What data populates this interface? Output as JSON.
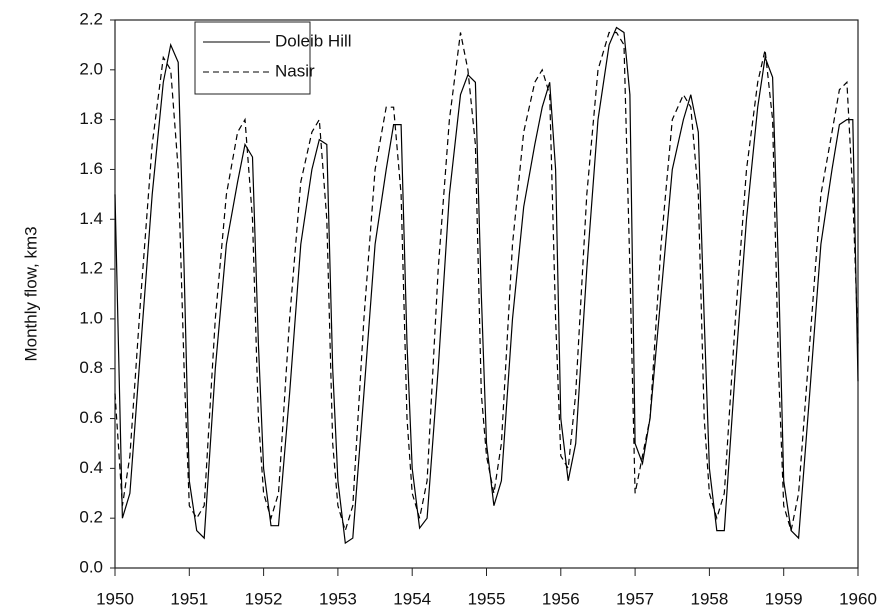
{
  "chart_data": {
    "type": "line",
    "y_label": "Monthly flow, km3",
    "x": [
      1950,
      1950.1,
      1950.2,
      1950.35,
      1950.5,
      1950.65,
      1950.75,
      1950.85,
      1950.93,
      1951,
      1951.1,
      1951.2,
      1951.35,
      1951.5,
      1951.65,
      1951.75,
      1951.85,
      1951.93,
      1952,
      1952.1,
      1952.2,
      1952.35,
      1952.5,
      1952.65,
      1952.75,
      1952.85,
      1952.93,
      1953,
      1953.1,
      1953.2,
      1953.35,
      1953.5,
      1953.65,
      1953.75,
      1953.85,
      1953.93,
      1954,
      1954.1,
      1954.2,
      1954.35,
      1954.5,
      1954.65,
      1954.75,
      1954.85,
      1954.93,
      1955,
      1955.1,
      1955.2,
      1955.35,
      1955.5,
      1955.65,
      1955.75,
      1955.85,
      1955.93,
      1956,
      1956.1,
      1956.2,
      1956.35,
      1956.5,
      1956.65,
      1956.75,
      1956.85,
      1956.93,
      1957,
      1957.1,
      1957.2,
      1957.35,
      1957.5,
      1957.65,
      1957.75,
      1957.85,
      1957.93,
      1958,
      1958.1,
      1958.2,
      1958.35,
      1958.5,
      1958.65,
      1958.75,
      1958.85,
      1958.93,
      1959,
      1959.1,
      1959.2,
      1959.35,
      1959.5,
      1959.65,
      1959.75,
      1959.85,
      1959.93,
      1960
    ],
    "series": [
      {
        "name": "Doleib Hill",
        "color": "#000000",
        "dash": false,
        "values": [
          1.5,
          0.2,
          0.3,
          0.9,
          1.5,
          1.95,
          2.1,
          2.03,
          1.2,
          0.35,
          0.15,
          0.12,
          0.8,
          1.3,
          1.55,
          1.7,
          1.65,
          0.9,
          0.4,
          0.17,
          0.17,
          0.7,
          1.3,
          1.6,
          1.72,
          1.7,
          0.8,
          0.35,
          0.1,
          0.12,
          0.7,
          1.3,
          1.6,
          1.78,
          1.78,
          0.9,
          0.4,
          0.16,
          0.2,
          0.8,
          1.5,
          1.9,
          1.98,
          1.95,
          1.1,
          0.5,
          0.25,
          0.35,
          1.0,
          1.45,
          1.7,
          1.85,
          1.95,
          1.6,
          0.6,
          0.35,
          0.5,
          1.2,
          1.8,
          2.1,
          2.17,
          2.15,
          1.9,
          0.5,
          0.42,
          0.6,
          1.1,
          1.6,
          1.8,
          1.9,
          1.75,
          1.0,
          0.4,
          0.15,
          0.15,
          0.8,
          1.4,
          1.85,
          2.05,
          1.97,
          1.2,
          0.35,
          0.15,
          0.12,
          0.7,
          1.3,
          1.6,
          1.78,
          1.8,
          1.8,
          0.75
        ]
      },
      {
        "name": "Nasir",
        "color": "#000000",
        "dash": true,
        "values": [
          0.7,
          0.25,
          0.45,
          1.1,
          1.7,
          2.05,
          2.0,
          1.6,
          0.8,
          0.25,
          0.2,
          0.25,
          1.0,
          1.5,
          1.75,
          1.8,
          1.4,
          0.6,
          0.3,
          0.2,
          0.3,
          1.0,
          1.55,
          1.75,
          1.8,
          1.4,
          0.5,
          0.25,
          0.15,
          0.25,
          1.0,
          1.6,
          1.85,
          1.85,
          1.5,
          0.6,
          0.3,
          0.2,
          0.35,
          1.2,
          1.8,
          2.15,
          2.0,
          1.7,
          0.7,
          0.45,
          0.3,
          0.5,
          1.3,
          1.75,
          1.95,
          2.0,
          1.9,
          1.0,
          0.45,
          0.4,
          0.7,
          1.5,
          2.0,
          2.15,
          2.15,
          2.1,
          1.2,
          0.3,
          0.45,
          0.6,
          1.3,
          1.8,
          1.9,
          1.85,
          1.5,
          0.6,
          0.3,
          0.2,
          0.3,
          1.0,
          1.6,
          1.95,
          2.08,
          1.8,
          0.8,
          0.25,
          0.15,
          0.3,
          0.9,
          1.5,
          1.75,
          1.92,
          1.95,
          1.5,
          0.9
        ]
      }
    ],
    "xlim": [
      1950,
      1960
    ],
    "xticks": [
      1950,
      1951,
      1952,
      1953,
      1954,
      1955,
      1956,
      1957,
      1958,
      1959,
      1960
    ],
    "ylim": [
      0,
      2.2
    ],
    "yticks": [
      {
        "value": 0,
        "label": "0.0"
      },
      0.2,
      0.4,
      0.6,
      0.8,
      {
        "value": 1,
        "label": "1.0"
      },
      1.2,
      1.4,
      1.6,
      1.8,
      {
        "value": 2,
        "label": "2.0"
      },
      2.2
    ],
    "legend": "upper left"
  }
}
